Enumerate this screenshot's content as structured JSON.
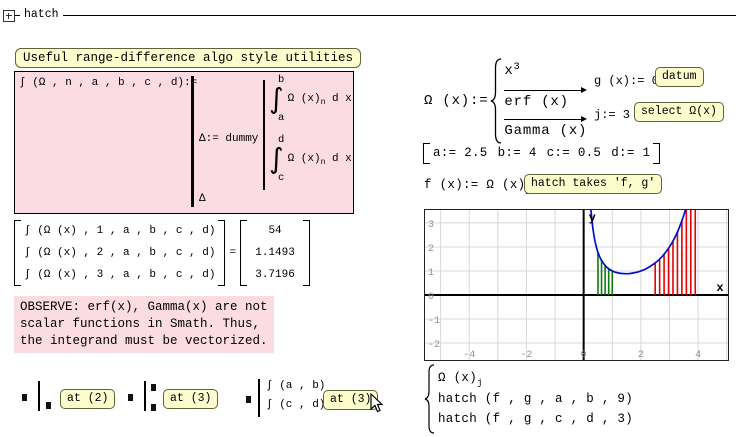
{
  "header": {
    "title": "hatch"
  },
  "left": {
    "title_box": "Useful range-difference algo style utilities",
    "func_def": {
      "lhs": "∫ (Ω , n , a , b , c , d):=",
      "delta_assign": "Δ:= dummy",
      "int1": {
        "upper": "b",
        "body": "Ω (x)",
        "sub": "n",
        "tail": "d x",
        "lower": "a"
      },
      "int2": {
        "upper": "d",
        "body": "Ω (x)",
        "sub": "n",
        "tail": "d x",
        "lower": "c"
      },
      "result": "Δ"
    },
    "matrix": {
      "rows": [
        "∫ (Ω (x) , 1 , a , b , c , d)",
        "∫ (Ω (x) , 2 , a , b , c , d)",
        "∫ (Ω (x) , 3 , a , b , c , d)"
      ],
      "equals": "=",
      "values": [
        "54",
        "1.1493",
        "3.7196"
      ]
    },
    "observe": [
      "OBSERVE: erf(x), Gamma(x) are not",
      "scalar functions in Smath. Thus,",
      "the integrand must be vectorized."
    ],
    "snippets": [
      {
        "button": "at (2)"
      },
      {
        "button": "at (3)"
      },
      {
        "exprs": [
          "∫ (a , b)",
          "∫ (c , d)"
        ],
        "button": "at (3)"
      }
    ]
  },
  "right": {
    "omega_def": {
      "lhs": "Ω (x):=",
      "row1_base": "x",
      "row1_sup": "3",
      "row2": "erf (x)",
      "row3": "Gamma (x)"
    },
    "g_def": {
      "text": "g (x):= 0",
      "button": "datum"
    },
    "j_def": {
      "text": "j:= 3",
      "button": "select Ω(x)"
    },
    "params": [
      "a:= 2.5",
      "b:= 4",
      "c:= 0.5",
      "d:= 1"
    ],
    "f_def": {
      "text": "f (x):= Ω (x)",
      "sub": "j",
      "button": "hatch takes 'f, g'"
    },
    "plot_list": {
      "row1_base": "Ω (x)",
      "row1_sub": "j",
      "row2": "hatch (f , g , a , b , 9)",
      "row3": "hatch (f , g , c , d , 3)"
    }
  },
  "chart_data": {
    "type": "line",
    "xlabel": "x",
    "ylabel": "y",
    "x_ticks": [
      -4,
      -2,
      0,
      2,
      4
    ],
    "y_ticks": [
      3,
      2,
      1,
      0,
      -1,
      -2
    ],
    "xlim": [
      -5.58,
      5.08
    ],
    "ylim": [
      -2.75,
      3.58
    ],
    "grid": true,
    "series": [
      {
        "name": "Gamma(x)",
        "color": "#0010cc",
        "x": [
          0.25,
          0.27,
          0.3,
          0.33,
          0.36,
          0.4,
          0.45,
          0.5,
          0.55,
          0.6,
          0.7,
          0.8,
          0.9,
          1.0,
          1.1,
          1.2,
          1.3,
          1.45,
          1.6,
          1.75,
          1.9,
          2.0,
          2.15,
          2.3,
          2.45,
          2.6,
          2.75,
          2.9,
          3.0,
          3.1,
          3.2,
          3.3,
          3.4,
          3.5,
          3.56,
          3.62
        ],
        "y": [
          3.62,
          3.34,
          2.99,
          2.71,
          2.47,
          2.22,
          1.97,
          1.77,
          1.62,
          1.49,
          1.3,
          1.16,
          1.07,
          1.0,
          0.95,
          0.92,
          0.9,
          0.886,
          0.89,
          0.92,
          0.96,
          1.0,
          1.07,
          1.17,
          1.29,
          1.43,
          1.61,
          1.83,
          2.0,
          2.2,
          2.42,
          2.68,
          2.98,
          3.32,
          3.55,
          3.75
        ]
      }
    ],
    "hatch_groups": [
      {
        "name": "hatch(f,g,c,d,3)",
        "color": "#0e7a0e",
        "x_from": 0.5,
        "x_to": 1.0,
        "count": 5
      },
      {
        "name": "hatch(f,g,a,b,9)",
        "color": "#e60000",
        "x_from": 2.5,
        "x_to": 3.9,
        "count": 10
      }
    ]
  }
}
